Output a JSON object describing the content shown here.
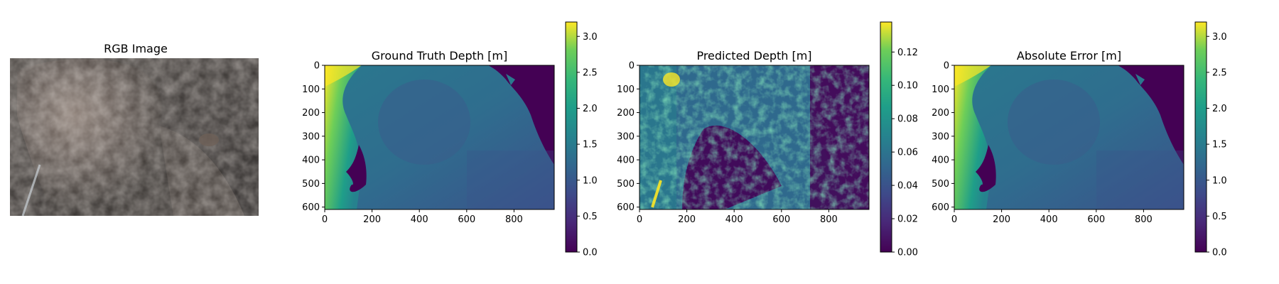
{
  "figure": {
    "panels": [
      {
        "id": "rgb",
        "title": "RGB Image"
      },
      {
        "id": "gt",
        "title": "Ground Truth Depth [m]"
      },
      {
        "id": "pred",
        "title": "Predicted Depth [m]"
      },
      {
        "id": "err",
        "title": "Absolute Error [m]"
      }
    ]
  },
  "chart_data": [
    {
      "type": "heatmap",
      "title": "RGB Image",
      "axes_visible": false
    },
    {
      "type": "heatmap",
      "title": "Ground Truth Depth [m]",
      "colormap": "viridis",
      "xlim": [
        0,
        970
      ],
      "ylim": [
        610,
        0
      ],
      "xticks": [
        0,
        200,
        400,
        600,
        800
      ],
      "yticks": [
        0,
        100,
        200,
        300,
        400,
        500,
        600
      ],
      "colorbar": {
        "min": 0.0,
        "max": 3.2,
        "ticks": [
          "0.0",
          "0.5",
          "1.0",
          "1.5",
          "2.0",
          "2.5",
          "3.0"
        ]
      }
    },
    {
      "type": "heatmap",
      "title": "Predicted Depth [m]",
      "colormap": "viridis",
      "xlim": [
        0,
        970
      ],
      "ylim": [
        610,
        0
      ],
      "xticks": [
        0,
        200,
        400,
        600,
        800
      ],
      "yticks": [
        0,
        100,
        200,
        300,
        400,
        500,
        600
      ],
      "colorbar": {
        "min": 0.0,
        "max": 0.138,
        "ticks": [
          "0.00",
          "0.02",
          "0.04",
          "0.06",
          "0.08",
          "0.10",
          "0.12"
        ]
      }
    },
    {
      "type": "heatmap",
      "title": "Absolute Error [m]",
      "colormap": "viridis",
      "xlim": [
        0,
        970
      ],
      "ylim": [
        610,
        0
      ],
      "xticks": [
        0,
        200,
        400,
        600,
        800
      ],
      "yticks": [
        0,
        100,
        200,
        300,
        400,
        500,
        600
      ],
      "colorbar": {
        "min": 0.0,
        "max": 3.2,
        "ticks": [
          "0.0",
          "0.5",
          "1.0",
          "1.5",
          "2.0",
          "2.5",
          "3.0"
        ]
      }
    }
  ]
}
